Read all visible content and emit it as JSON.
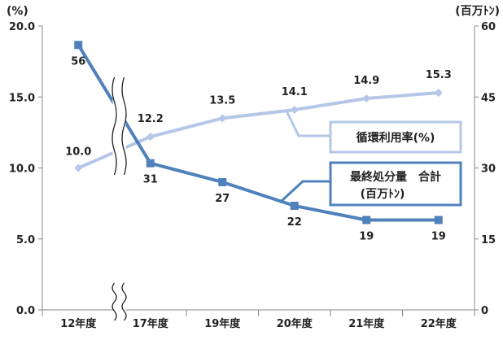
{
  "chart_data": {
    "type": "line",
    "categories": [
      "12年度",
      "17年度",
      "19年度",
      "20年度",
      "21年度",
      "22年度"
    ],
    "left_axis": {
      "unit": "(%)",
      "ylim": [
        0,
        20
      ],
      "ticks": [
        "0.0",
        "5.0",
        "10.0",
        "15.0",
        "20.0"
      ]
    },
    "right_axis": {
      "unit": "(百万ﾄﾝ)",
      "ylim": [
        0,
        60
      ],
      "ticks": [
        "0",
        "15",
        "30",
        "45",
        "60"
      ]
    },
    "axis_break": true,
    "series": [
      {
        "name": "循環利用率(%)",
        "axis": "left",
        "values": [
          10.0,
          12.2,
          13.5,
          14.1,
          14.9,
          15.3
        ],
        "labels": [
          "10.0",
          "12.2",
          "13.5",
          "14.1",
          "14.9",
          "15.3"
        ],
        "color": "#b4c7e7",
        "marker": "diamond"
      },
      {
        "name": "最終処分量 合計 (百万ﾄﾝ)",
        "name_lines": [
          "最終処分量　合計",
          "(百万ﾄﾝ)"
        ],
        "axis": "right",
        "values": [
          56,
          31,
          27,
          22,
          19,
          19
        ],
        "labels": [
          "56",
          "31",
          "27",
          "22",
          "19",
          "19"
        ],
        "color": "#4f81bd",
        "marker": "square"
      }
    ],
    "grid": false,
    "legend": "callouts"
  }
}
